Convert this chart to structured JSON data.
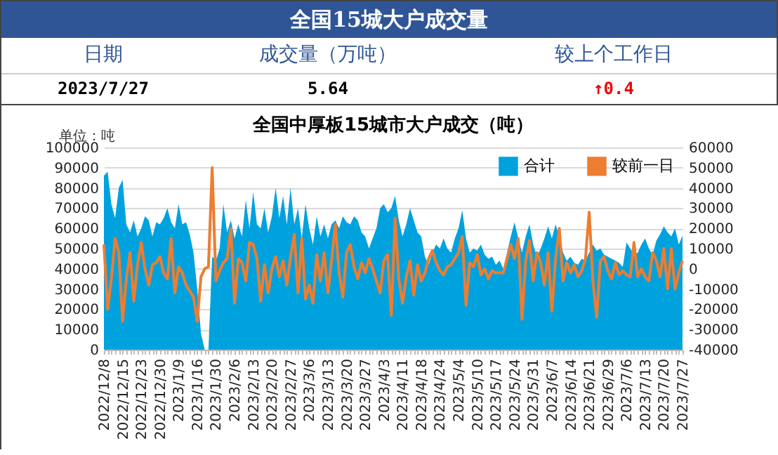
{
  "chart_data": [
    {
      "type": "other",
      "title": "全国15城大户成交量",
      "annotations": [
        "日期",
        "成交量（万吨）",
        "较上个工作日",
        "2023/7/27",
        "5.64",
        "↑0.4"
      ]
    },
    {
      "type": "area",
      "title": "全国中厚板15城市大户成交（吨）",
      "annotations": [
        "单位：吨"
      ],
      "categories": [
        "2022/12/8",
        null,
        null,
        null,
        null,
        "2022/12/15",
        null,
        null,
        null,
        null,
        "2022/12/23",
        null,
        null,
        null,
        null,
        "2022/12/30",
        null,
        null,
        null,
        null,
        "2023/1/9",
        null,
        null,
        null,
        null,
        "2023/1/16",
        null,
        null,
        null,
        null,
        "2023/1/30",
        null,
        null,
        null,
        null,
        "2023/2/6",
        null,
        null,
        null,
        null,
        "2023/2/13",
        null,
        null,
        null,
        null,
        "2023/2/20",
        null,
        null,
        null,
        null,
        "2023/2/27",
        null,
        null,
        null,
        null,
        "2023/3/6",
        null,
        null,
        null,
        null,
        "2023/3/13",
        null,
        null,
        null,
        null,
        "2023/3/20",
        null,
        null,
        null,
        null,
        "2023/3/27",
        null,
        null,
        null,
        null,
        "2023/4/3",
        null,
        null,
        null,
        null,
        "2023/4/11",
        null,
        null,
        null,
        null,
        "2023/4/18",
        null,
        null,
        null,
        null,
        "2023/4/24",
        null,
        null,
        null,
        null,
        "2023/5/4",
        null,
        null,
        null,
        null,
        "2023/5/10",
        null,
        null,
        null,
        null,
        "2023/5/17",
        null,
        null,
        null,
        null,
        "2023/5/24",
        null,
        null,
        null,
        null,
        "2023/5/31",
        null,
        null,
        null,
        null,
        "2023/6/7",
        null,
        null,
        null,
        null,
        "2023/6/14",
        null,
        null,
        null,
        null,
        "2023/6/21",
        null,
        null,
        null,
        null,
        "2023/6/29",
        null,
        null,
        null,
        null,
        "2023/7/6",
        null,
        null,
        null,
        null,
        "2023/7/13",
        null,
        null,
        null,
        null,
        "2023/7/20",
        null,
        null,
        null,
        null,
        "2023/7/27"
      ],
      "series": [
        {
          "name": "合计",
          "type": "area",
          "color": "#00a2de",
          "values": [
            86000,
            88000,
            72000,
            65000,
            80000,
            84000,
            62000,
            58000,
            64000,
            56000,
            60000,
            66000,
            64000,
            56000,
            63000,
            62000,
            65000,
            70000,
            63000,
            60000,
            72000,
            62000,
            63000,
            57000,
            48000,
            30000,
            8000,
            0,
            0,
            46000,
            44000,
            50000,
            72000,
            58000,
            64000,
            55000,
            62000,
            56000,
            74000,
            60000,
            78000,
            62000,
            60000,
            70000,
            58000,
            66000,
            80000,
            65000,
            76000,
            62000,
            80000,
            62000,
            70000,
            55000,
            72000,
            60000,
            52000,
            66000,
            56000,
            62000,
            55000,
            62000,
            64000,
            60000,
            66000,
            63000,
            62000,
            66000,
            64000,
            58000,
            56000,
            50000,
            55000,
            60000,
            70000,
            72000,
            68000,
            70000,
            76000,
            64000,
            56000,
            62000,
            70000,
            64000,
            58000,
            56000,
            46000,
            42000,
            48000,
            52000,
            50000,
            55000,
            50000,
            48000,
            55000,
            60000,
            69000,
            55000,
            48000,
            50000,
            49000,
            52000,
            47000,
            45000,
            46000,
            42000,
            44000,
            40000,
            48000,
            56000,
            63000,
            55000,
            48000,
            56000,
            62000,
            52000,
            46000,
            50000,
            55000,
            61000,
            55000,
            62000,
            56000,
            48000,
            44000,
            46000,
            43000,
            42000,
            45000,
            44000,
            48000,
            52000,
            49000,
            50000,
            47000,
            46000,
            45000,
            44000,
            43000,
            41000,
            53000,
            50000,
            47000,
            48000,
            52000,
            55000,
            50000,
            47000,
            54000,
            57000,
            61000,
            58000,
            56000,
            60000,
            52000,
            56400
          ]
        },
        {
          "name": "较前一日",
          "type": "line",
          "axis": "y2",
          "color": "#ed7d31",
          "values": [
            12000,
            -20000,
            -5000,
            15000,
            8000,
            -26000,
            -5000,
            8000,
            -16000,
            2000,
            13000,
            0,
            -8000,
            2000,
            3000,
            6000,
            -2000,
            -5000,
            15000,
            -12000,
            1000,
            -2000,
            -8000,
            -11000,
            -14000,
            -26000,
            -4000,
            0,
            1000,
            50000,
            -6000,
            -1000,
            3000,
            5000,
            20000,
            -17000,
            5000,
            3000,
            -6000,
            13000,
            12000,
            5000,
            -16000,
            2000,
            -12000,
            0,
            6000,
            -4000,
            4000,
            -8000,
            6000,
            17000,
            -12000,
            15000,
            -15000,
            -8000,
            -17000,
            7000,
            -6000,
            8000,
            -12000,
            4000,
            22000,
            -2000,
            -14000,
            8000,
            12000,
            1000,
            -5000,
            3000,
            -2000,
            5000,
            0,
            -6000,
            -12000,
            4000,
            7000,
            -23000,
            25000,
            -5000,
            -17000,
            -4000,
            4000,
            -13000,
            2000,
            -6000,
            -2000,
            5000,
            9000,
            3000,
            -1000,
            -3000,
            1000,
            2000,
            5000,
            8000,
            16000,
            -18000,
            3000,
            1000,
            7000,
            -3000,
            0,
            -5000,
            -1000,
            -2000,
            -2000,
            -2000,
            5000,
            12000,
            5000,
            15000,
            -25000,
            4000,
            14000,
            -6000,
            8000,
            3000,
            -8000,
            8000,
            -21000,
            5000,
            20000,
            -6000,
            3000,
            -2000,
            2000,
            -4000,
            -1000,
            5000,
            28000,
            -6000,
            -24000,
            4000,
            6000,
            -1000,
            -5000,
            3000,
            -3000,
            -1000,
            -3000,
            -4000,
            13000,
            -4000,
            0,
            -4000,
            -6000,
            8000,
            4000,
            -4000,
            10000,
            -10000,
            10000,
            -10000,
            -2000,
            4000
          ]
        }
      ],
      "ylim": [
        0,
        100000
      ],
      "yticks": [
        0,
        10000,
        20000,
        30000,
        40000,
        50000,
        60000,
        70000,
        80000,
        90000,
        100000
      ],
      "y2lim": [
        -40000,
        60000
      ],
      "y2ticks": [
        -40000,
        -30000,
        -20000,
        -10000,
        0,
        10000,
        20000,
        30000,
        40000,
        50000,
        60000
      ],
      "grid": "y",
      "legend": "top right"
    }
  ]
}
